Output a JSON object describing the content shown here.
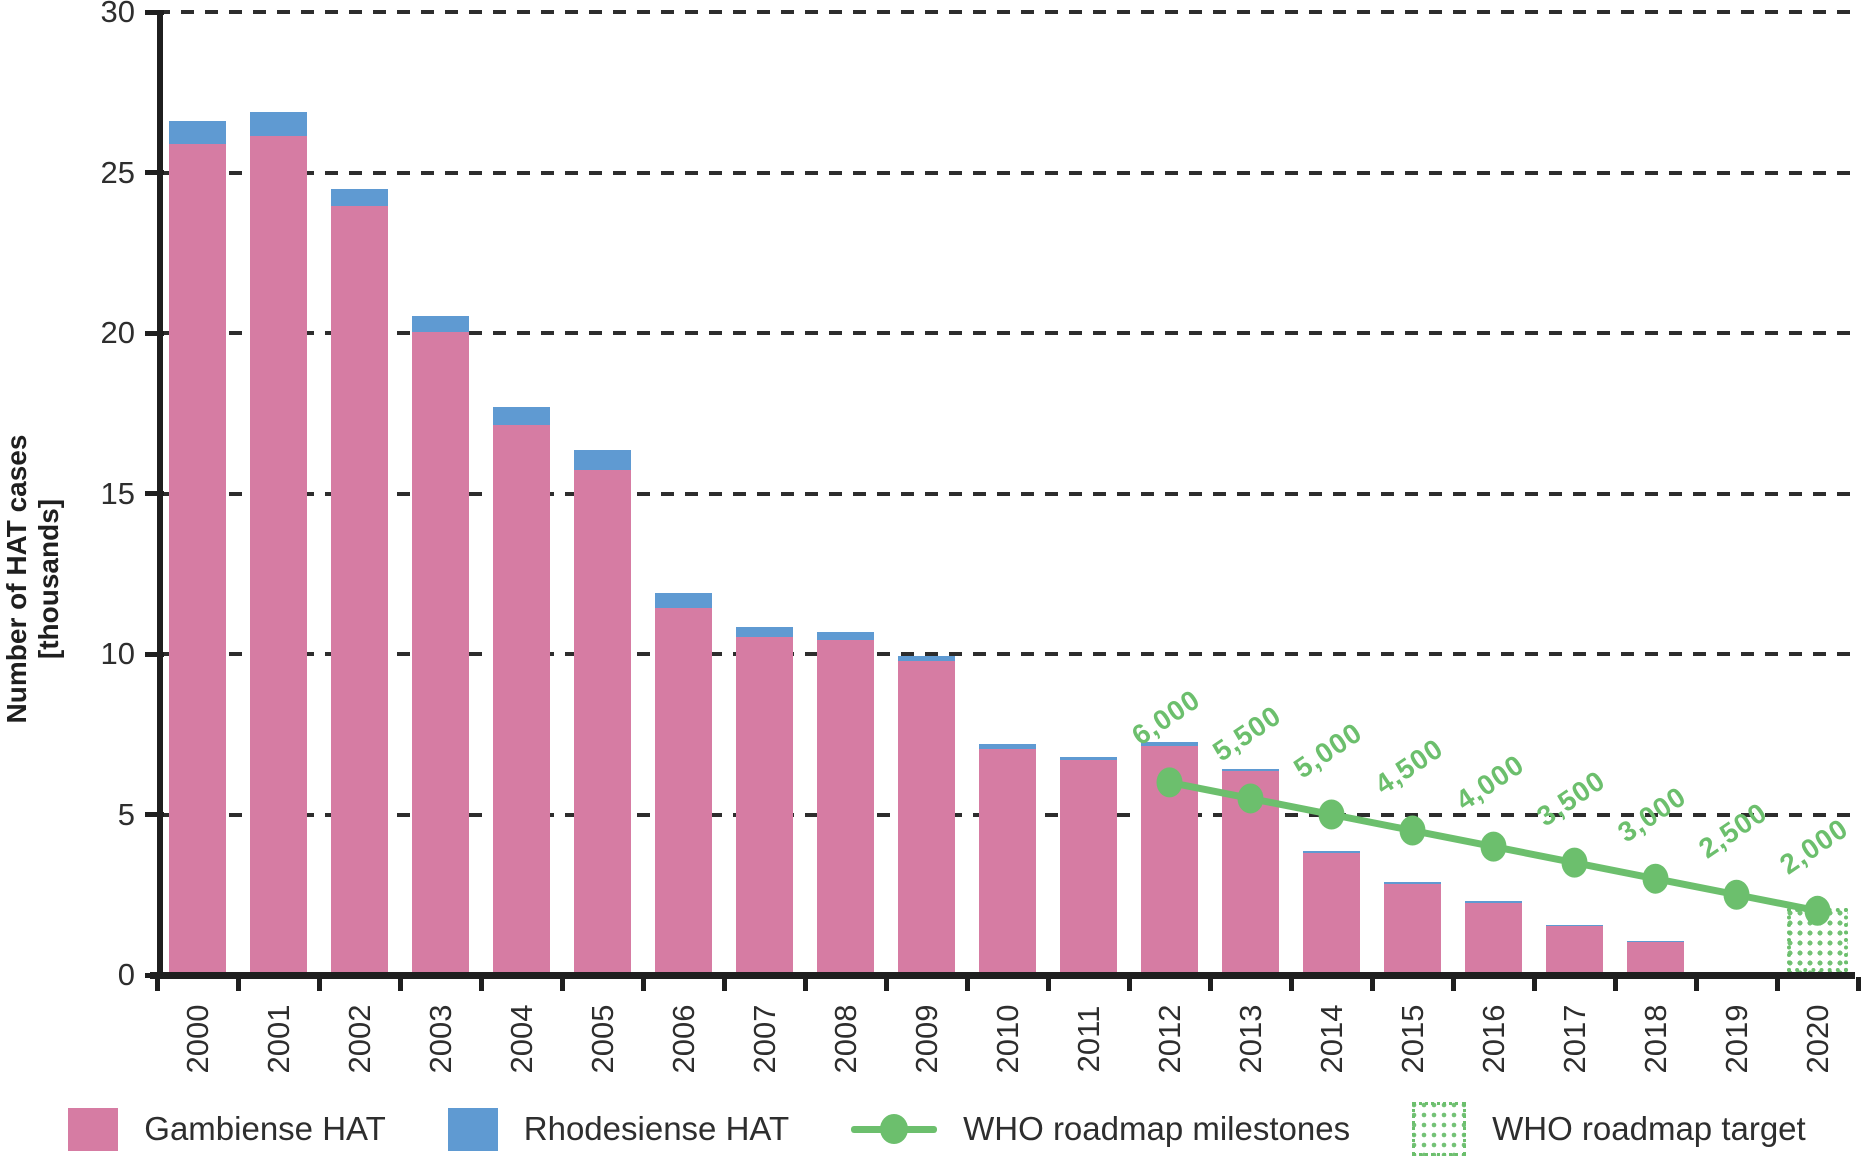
{
  "chart_data": {
    "type": "bar",
    "stacked": true,
    "title": "",
    "ylabel": "Number of HAT cases",
    "ylabel_unit": "[thousands]",
    "ylim": [
      0,
      30
    ],
    "yticks": [
      0,
      5,
      10,
      15,
      20,
      25,
      30
    ],
    "grid": "horizontal-dashed",
    "legend_position": "bottom",
    "categories": [
      "2000",
      "2001",
      "2002",
      "2003",
      "2004",
      "2005",
      "2006",
      "2007",
      "2008",
      "2009",
      "2010",
      "2011",
      "2012",
      "2013",
      "2014",
      "2015",
      "2016",
      "2017",
      "2018",
      "2019",
      "2020"
    ],
    "series": [
      {
        "name": "Gambiense HAT",
        "color": "#d67ca3",
        "values": [
          25.8,
          26.05,
          23.85,
          19.95,
          17.05,
          15.65,
          11.35,
          10.45,
          10.35,
          9.7,
          6.95,
          6.6,
          7.05,
          6.25,
          3.7,
          2.75,
          2.15,
          1.42,
          0.95,
          0,
          0
        ]
      },
      {
        "name": "Rhodesiense HAT",
        "color": "#5f9ad2",
        "values": [
          0.7,
          0.75,
          0.55,
          0.5,
          0.55,
          0.6,
          0.45,
          0.3,
          0.25,
          0.15,
          0.15,
          0.1,
          0.12,
          0.08,
          0.08,
          0.05,
          0.05,
          0.03,
          0.02,
          0,
          0
        ]
      }
    ],
    "milestones": {
      "name": "WHO roadmap milestones",
      "color": "#6cbf6d",
      "points": [
        {
          "year": "2012",
          "value": 6.0,
          "label": "6,000"
        },
        {
          "year": "2013",
          "value": 5.5,
          "label": "5,500"
        },
        {
          "year": "2014",
          "value": 5.0,
          "label": "5,000"
        },
        {
          "year": "2015",
          "value": 4.5,
          "label": "4,500"
        },
        {
          "year": "2016",
          "value": 4.0,
          "label": "4,000"
        },
        {
          "year": "2017",
          "value": 3.5,
          "label": "3,500"
        },
        {
          "year": "2018",
          "value": 3.0,
          "label": "3,000"
        },
        {
          "year": "2019",
          "value": 2.5,
          "label": "2,500"
        },
        {
          "year": "2020",
          "value": 2.0,
          "label": "2,000"
        }
      ]
    },
    "target": {
      "name": "WHO roadmap target",
      "color": "#6cbf6d",
      "year": "2020",
      "value": 2.0
    }
  }
}
